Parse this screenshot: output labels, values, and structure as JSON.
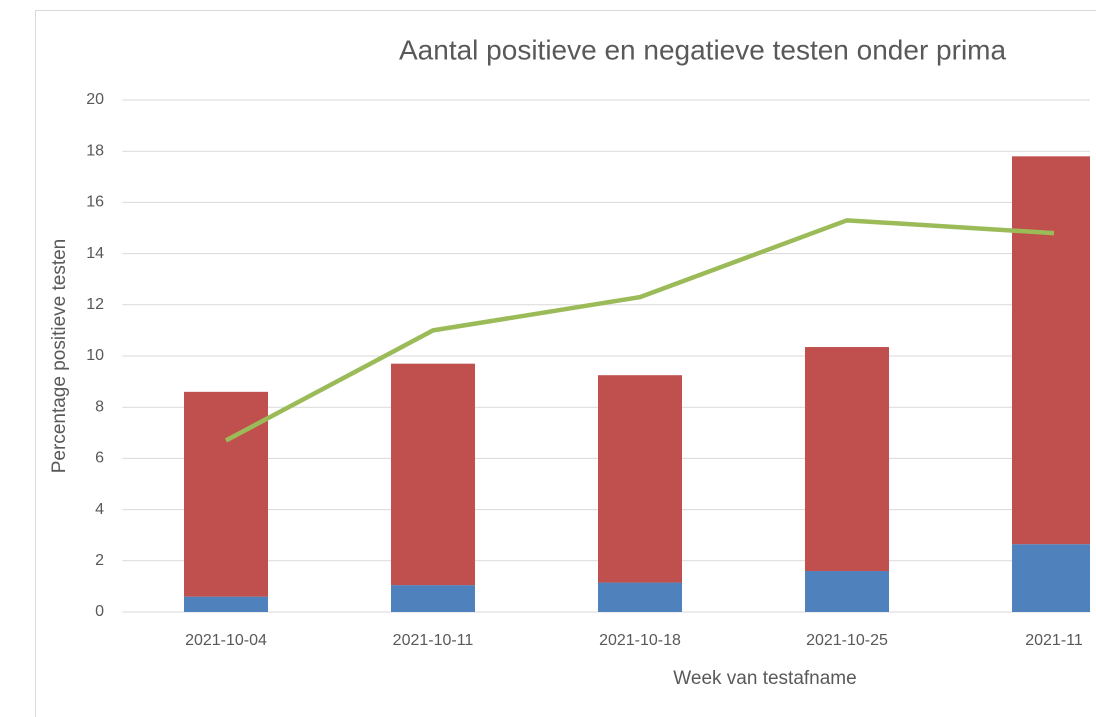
{
  "chart_data": {
    "type": "bar",
    "title": "Aantal positieve en negatieve testen onder prima",
    "x_label": "Week van testafname",
    "y_label": "Percentage positieve testen",
    "categories": [
      "2021-10-04",
      "2021-10-11",
      "2021-10-18",
      "2021-10-25",
      "2021-11"
    ],
    "series": [
      {
        "color": "#4f81bd",
        "values": [
          0.6,
          1.05,
          1.15,
          1.6,
          2.65
        ]
      },
      {
        "color": "#c0504d",
        "values": [
          8.0,
          8.65,
          8.1,
          8.75,
          15.15
        ]
      },
      {
        "type": "line",
        "color": "#9bbb59",
        "values": [
          6.7,
          11.0,
          12.3,
          15.3,
          14.8
        ]
      }
    ],
    "stacked": true,
    "ylim": [
      0,
      20
    ],
    "yticks": [
      0,
      2,
      4,
      6,
      8,
      10,
      12,
      14,
      16,
      18,
      20
    ],
    "grid": true
  }
}
